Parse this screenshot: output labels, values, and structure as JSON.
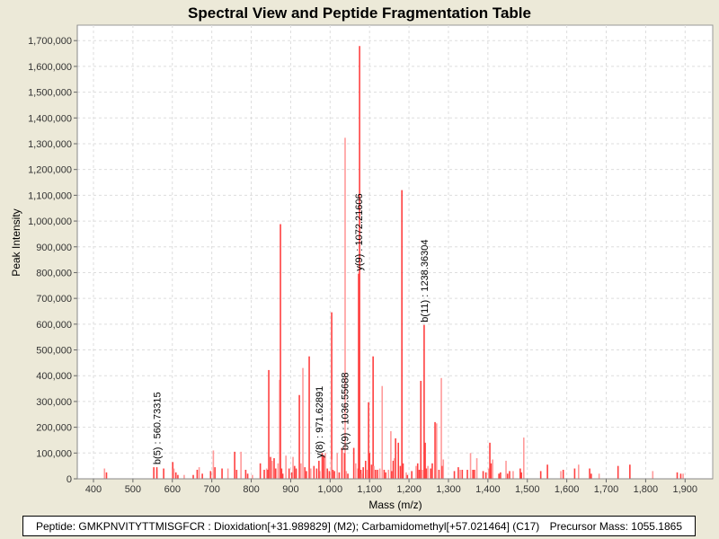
{
  "chart_data": {
    "type": "bar",
    "title": "Spectral View and Peptide Fragmentation Table",
    "xlabel": "Mass (m/z)",
    "ylabel": "Peak Intensity",
    "xlim": [
      359,
      1970
    ],
    "ylim": [
      0,
      1760000
    ],
    "xticks": [
      400,
      500,
      600,
      700,
      800,
      900,
      1000,
      1100,
      1200,
      1300,
      1400,
      1500,
      1600,
      1700,
      1800,
      1900
    ],
    "yticks": [
      0,
      100000,
      200000,
      300000,
      400000,
      500000,
      600000,
      700000,
      800000,
      900000,
      1000000,
      1100000,
      1200000,
      1300000,
      1400000,
      1500000,
      1600000,
      1700000
    ],
    "grid": true,
    "bar_color": "#FF4040",
    "bar_color_light": "#FF9A9A",
    "peaks": [
      [
        844.5,
        422000
      ],
      [
        872,
        384000
      ],
      [
        874.1,
        988000
      ],
      [
        922,
        325000
      ],
      [
        931,
        430000
      ],
      [
        947,
        475000
      ],
      [
        1004,
        646000
      ],
      [
        1038,
        1323000
      ],
      [
        1074.7,
        1679000
      ],
      [
        1109,
        475000
      ],
      [
        1132,
        360000
      ],
      [
        1182,
        1120000
      ],
      [
        1230,
        380000
      ],
      [
        1282,
        391000
      ],
      [
        1266,
        220000
      ],
      [
        1097.5,
        297000
      ],
      [
        1154,
        185000
      ],
      [
        1166,
        157000
      ],
      [
        1173,
        140000
      ],
      [
        428,
        40000
      ],
      [
        433,
        25000
      ],
      [
        553,
        45000
      ],
      [
        561,
        35000
      ],
      [
        578,
        40000
      ],
      [
        601,
        65000
      ],
      [
        604,
        40000
      ],
      [
        609,
        25000
      ],
      [
        614,
        15000
      ],
      [
        630,
        15000
      ],
      [
        653,
        15000
      ],
      [
        663,
        35000
      ],
      [
        668,
        45000
      ],
      [
        676,
        20000
      ],
      [
        697,
        30000
      ],
      [
        704,
        110000
      ],
      [
        708,
        45000
      ],
      [
        726,
        40000
      ],
      [
        741,
        40000
      ],
      [
        758,
        105000
      ],
      [
        763,
        35000
      ],
      [
        774,
        105000
      ],
      [
        786,
        35000
      ],
      [
        791,
        20000
      ],
      [
        803,
        15000
      ],
      [
        823,
        60000
      ],
      [
        833,
        35000
      ],
      [
        839,
        40000
      ],
      [
        842,
        35000
      ],
      [
        849,
        85000
      ],
      [
        853,
        70000
      ],
      [
        858,
        80000
      ],
      [
        862,
        40000
      ],
      [
        868,
        60000
      ],
      [
        877,
        40000
      ],
      [
        880,
        20000
      ],
      [
        888,
        90000
      ],
      [
        896,
        40000
      ],
      [
        903,
        25000
      ],
      [
        906,
        85000
      ],
      [
        910,
        50000
      ],
      [
        914,
        40000
      ],
      [
        926,
        60000
      ],
      [
        936,
        45000
      ],
      [
        940,
        30000
      ],
      [
        951,
        40000
      ],
      [
        959,
        50000
      ],
      [
        966,
        40000
      ],
      [
        974,
        30000
      ],
      [
        980,
        100000
      ],
      [
        984,
        90000
      ],
      [
        988,
        100000
      ],
      [
        993,
        40000
      ],
      [
        998,
        30000
      ],
      [
        1003,
        75000
      ],
      [
        1007,
        35000
      ],
      [
        1011,
        30000
      ],
      [
        1018,
        100000
      ],
      [
        1023,
        25000
      ],
      [
        1030,
        120000
      ],
      [
        1041,
        30000
      ],
      [
        1045,
        20000
      ],
      [
        1060,
        120000
      ],
      [
        1065,
        60000
      ],
      [
        1071,
        40000
      ],
      [
        1078,
        35000
      ],
      [
        1080,
        20000
      ],
      [
        1084,
        45000
      ],
      [
        1090,
        70000
      ],
      [
        1094,
        35000
      ],
      [
        1100,
        100000
      ],
      [
        1105,
        55000
      ],
      [
        1111,
        50000
      ],
      [
        1115,
        35000
      ],
      [
        1120,
        35000
      ],
      [
        1126,
        40000
      ],
      [
        1137,
        35000
      ],
      [
        1141,
        25000
      ],
      [
        1148,
        35000
      ],
      [
        1156,
        30000
      ],
      [
        1160,
        70000
      ],
      [
        1163,
        80000
      ],
      [
        1178,
        50000
      ],
      [
        1185,
        60000
      ],
      [
        1193,
        25000
      ],
      [
        1196,
        15000
      ],
      [
        1207,
        30000
      ],
      [
        1218,
        50000
      ],
      [
        1222,
        60000
      ],
      [
        1226,
        35000
      ],
      [
        1234,
        35000
      ],
      [
        1241,
        140000
      ],
      [
        1244,
        40000
      ],
      [
        1248,
        50000
      ],
      [
        1255,
        40000
      ],
      [
        1259,
        60000
      ],
      [
        1270,
        215000
      ],
      [
        1276,
        35000
      ],
      [
        1284,
        50000
      ],
      [
        1287,
        75000
      ],
      [
        1315,
        30000
      ],
      [
        1325,
        45000
      ],
      [
        1330,
        35000
      ],
      [
        1335,
        35000
      ],
      [
        1348,
        35000
      ],
      [
        1356,
        100000
      ],
      [
        1362,
        35000
      ],
      [
        1366,
        35000
      ],
      [
        1372,
        80000
      ],
      [
        1388,
        30000
      ],
      [
        1395,
        25000
      ],
      [
        1402,
        40000
      ],
      [
        1405,
        140000
      ],
      [
        1408,
        60000
      ],
      [
        1412,
        75000
      ],
      [
        1428,
        20000
      ],
      [
        1432,
        25000
      ],
      [
        1446,
        70000
      ],
      [
        1450,
        20000
      ],
      [
        1455,
        30000
      ],
      [
        1464,
        30000
      ],
      [
        1482,
        40000
      ],
      [
        1485,
        25000
      ],
      [
        1491,
        160000
      ],
      [
        1534,
        30000
      ],
      [
        1551,
        55000
      ],
      [
        1585,
        30000
      ],
      [
        1591,
        35000
      ],
      [
        1620,
        40000
      ],
      [
        1630,
        55000
      ],
      [
        1658,
        40000
      ],
      [
        1662,
        20000
      ],
      [
        1682,
        20000
      ],
      [
        1730,
        50000
      ],
      [
        1760,
        55000
      ],
      [
        1818,
        30000
      ],
      [
        1880,
        25000
      ],
      [
        1889,
        20000
      ],
      [
        1895,
        20000
      ]
    ],
    "annotations": [
      {
        "label": "b(5) : 560.73315",
        "mz": 560.73315,
        "intensity": 45000
      },
      {
        "label": "y(8) : 971.62891",
        "mz": 971.62891,
        "intensity": 70000
      },
      {
        "label": "b(9) : 1036.55688",
        "mz": 1036.55688,
        "intensity": 100000
      },
      {
        "label": "y(9) : 1072.21606",
        "mz": 1072.21606,
        "intensity": 796000
      },
      {
        "label": "b(11) : 1238.36304",
        "mz": 1238.36304,
        "intensity": 597000
      }
    ]
  },
  "legend": {
    "peptide": "Peptide: GMKPNVITYTTMISGFCR : Dioxidation[+31.989829] (M2); Carbamidomethyl[+57.021464] (C17)",
    "precursor": "Precursor Mass: 1055.1865"
  }
}
